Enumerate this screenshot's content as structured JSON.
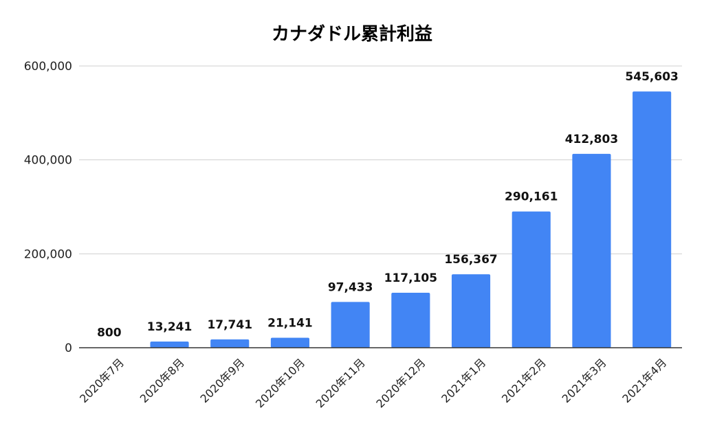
{
  "chart_data": {
    "type": "bar",
    "title": "カナダドル累計利益",
    "xlabel": "",
    "ylabel": "",
    "categories": [
      "2020年7月",
      "2020年8月",
      "2020年9月",
      "2020年10月",
      "2020年11月",
      "2020年12月",
      "2021年1月",
      "2021年2月",
      "2021年3月",
      "2021年4月"
    ],
    "values": [
      800,
      13241,
      17741,
      21141,
      97433,
      117105,
      156367,
      290161,
      412803,
      545603
    ],
    "data_labels": [
      "800",
      "13,241",
      "17,741",
      "21,141",
      "97,433",
      "117,105",
      "156,367",
      "290,161",
      "412,803",
      "545,603"
    ],
    "ylim": [
      0,
      600000
    ],
    "yticks": [
      0,
      200000,
      400000,
      600000
    ],
    "ytick_labels": [
      "0",
      "200,000",
      "400,000",
      "600,000"
    ],
    "grid": true,
    "bar_color": "#4285f4"
  }
}
